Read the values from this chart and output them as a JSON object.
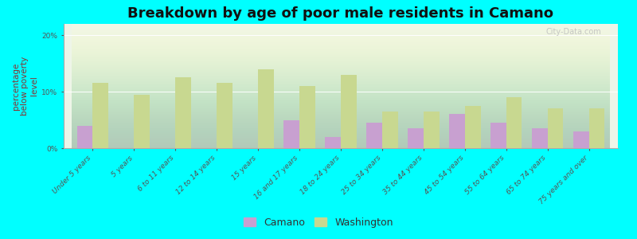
{
  "title": "Breakdown by age of poor male residents in Camano",
  "ylabel": "percentage\nbelow poverty\nlevel",
  "categories": [
    "Under 5 years",
    "5 years",
    "6 to 11 years",
    "12 to 14 years",
    "15 years",
    "16 and 17 years",
    "18 to 24 years",
    "25 to 34 years",
    "35 to 44 years",
    "45 to 54 years",
    "55 to 64 years",
    "65 to 74 years",
    "75 years and over"
  ],
  "camano_values": [
    4.0,
    0.0,
    0.0,
    0.0,
    0.0,
    5.0,
    2.0,
    4.5,
    3.5,
    6.0,
    4.5,
    3.5,
    3.0
  ],
  "washington_values": [
    11.5,
    9.5,
    12.5,
    11.5,
    14.0,
    11.0,
    13.0,
    6.5,
    6.5,
    7.5,
    9.0,
    7.0,
    7.0
  ],
  "camano_color": "#c8a0d0",
  "washington_color": "#c8d890",
  "background_color": "#00ffff",
  "ylim": [
    0,
    22
  ],
  "yticks": [
    0,
    10,
    20
  ],
  "ytick_labels": [
    "0%",
    "10%",
    "20%"
  ],
  "bar_width": 0.38,
  "title_fontsize": 13,
  "axis_label_fontsize": 7.5,
  "tick_fontsize": 6.5,
  "legend_fontsize": 9,
  "watermark_text": "City-Data.com"
}
